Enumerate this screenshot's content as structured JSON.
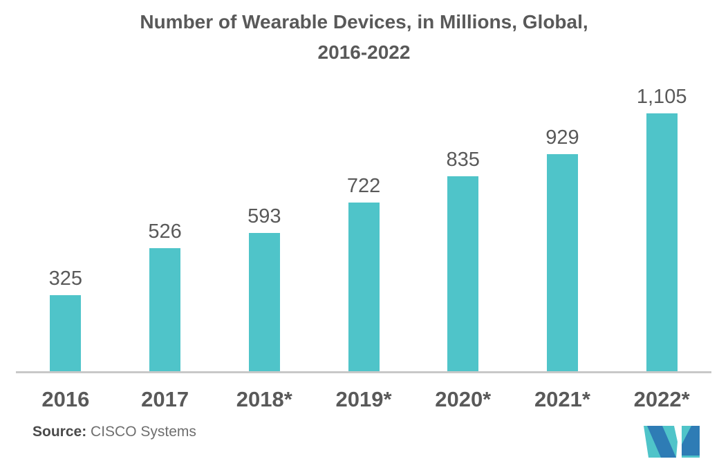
{
  "title": {
    "line1": "Number of Wearable Devices, in Millions, Global,",
    "line2": "2016-2022"
  },
  "chart_data": {
    "type": "bar",
    "title": "Number of Wearable Devices, in Millions, Global, 2016-2022",
    "categories": [
      "2016",
      "2017",
      "2018*",
      "2019*",
      "2020*",
      "2021*",
      "2022*"
    ],
    "values": [
      325,
      526,
      593,
      722,
      835,
      929,
      1105
    ],
    "value_labels": [
      "325",
      "526",
      "593",
      "722",
      "835",
      "929",
      "1,105"
    ],
    "xlabel": "",
    "ylabel": "",
    "ylim": [
      0,
      1200
    ],
    "grid": false,
    "legend": false,
    "bar_color": "#4fc4c9",
    "label_color": "#595959",
    "axis_line_color": "#c8c8c8"
  },
  "source": {
    "label": "Source:",
    "text": " CISCO Systems"
  },
  "logo": {
    "name": "mordor-intelligence-logo",
    "blue": "#2e7cb5",
    "teal": "#4fc4c9"
  }
}
